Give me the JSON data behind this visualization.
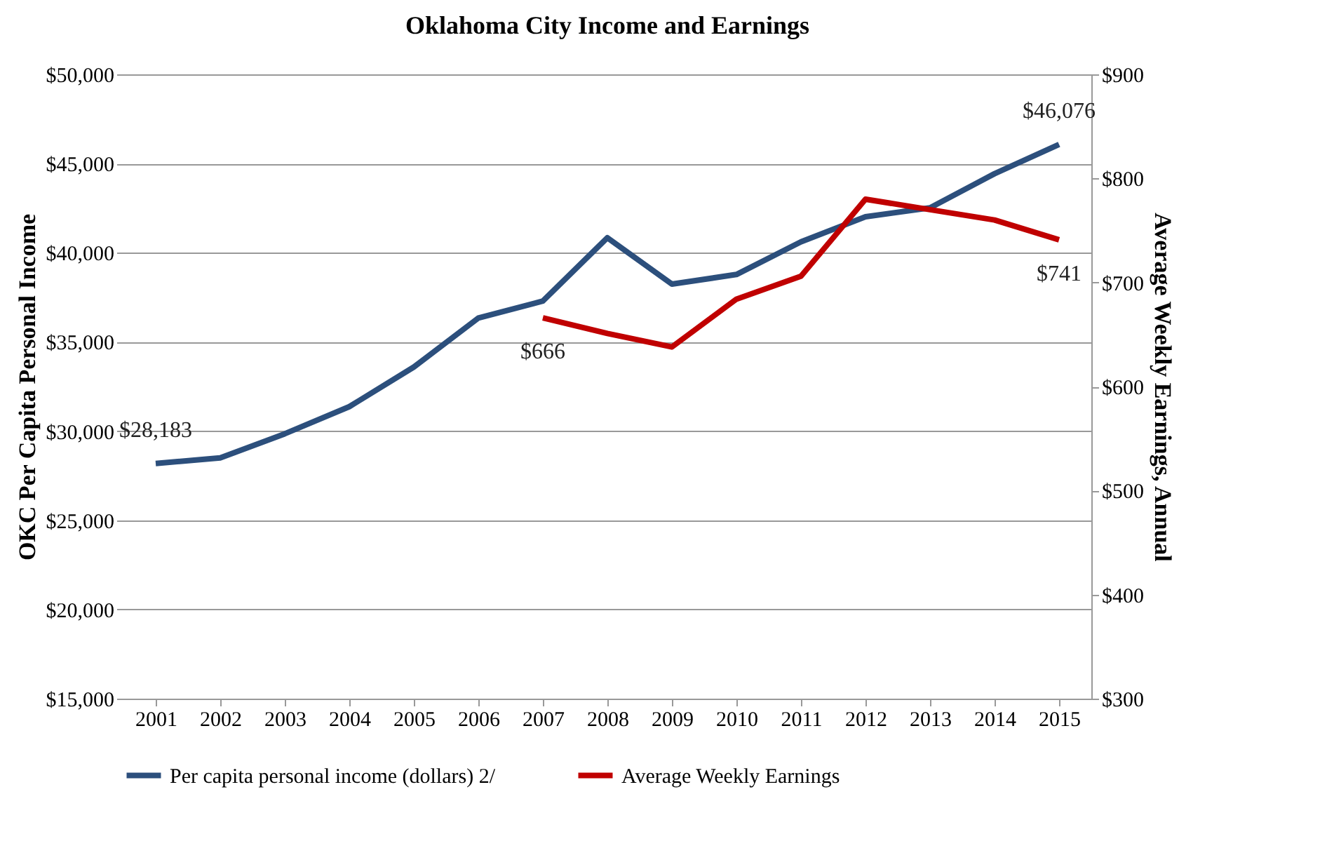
{
  "chart_data": {
    "type": "line",
    "title": "Oklahoma City Income and Earnings",
    "ylabel": "OKC Per Capita Personal Income",
    "y2label": "Average Weekly Earnings, Annual",
    "categories": [
      "2001",
      "2002",
      "2003",
      "2004",
      "2005",
      "2006",
      "2007",
      "2008",
      "2009",
      "2010",
      "2011",
      "2012",
      "2013",
      "2014",
      "2015"
    ],
    "series": [
      {
        "name": "Per capita personal income (dollars) 2/",
        "color": "#2c4f7c",
        "values": [
          28183,
          28500,
          29850,
          31370,
          33590,
          36340,
          37290,
          40840,
          38240,
          38780,
          40610,
          42020,
          42520,
          44430,
          46076
        ],
        "value_labels": [
          "$28,183",
          null,
          null,
          null,
          null,
          null,
          null,
          null,
          null,
          null,
          null,
          null,
          null,
          null,
          "$46,076"
        ]
      },
      {
        "name": "Average Weekly Earnings",
        "color": "#c00000",
        "axis": "y2",
        "values": [
          null,
          null,
          null,
          null,
          null,
          null,
          666,
          651,
          638,
          684,
          706,
          780,
          770,
          760,
          741
        ],
        "value_labels": [
          null,
          null,
          null,
          null,
          null,
          null,
          "$666",
          null,
          null,
          null,
          null,
          null,
          null,
          null,
          "$741"
        ]
      }
    ],
    "ylim": [
      15000,
      50000
    ],
    "yticks": [
      {
        "value": 15000,
        "label": "$15,000"
      },
      {
        "value": 20000,
        "label": "$20,000"
      },
      {
        "value": 25000,
        "label": "$25,000"
      },
      {
        "value": 30000,
        "label": "$30,000"
      },
      {
        "value": 35000,
        "label": "$35,000"
      },
      {
        "value": 40000,
        "label": "$40,000"
      },
      {
        "value": 45000,
        "label": "$45,000"
      },
      {
        "value": 50000,
        "label": "$50,000"
      }
    ],
    "y2lim": [
      300,
      900
    ],
    "y2ticks": [
      {
        "value": 300,
        "label": "$300"
      },
      {
        "value": 400,
        "label": "$400"
      },
      {
        "value": 500,
        "label": "$500"
      },
      {
        "value": 600,
        "label": "$600"
      },
      {
        "value": 700,
        "label": "$700"
      },
      {
        "value": 800,
        "label": "$800"
      },
      {
        "value": 900,
        "label": "$900"
      }
    ],
    "grid": "y",
    "legend": "bottom",
    "marker": "none",
    "line_style": "solid"
  }
}
